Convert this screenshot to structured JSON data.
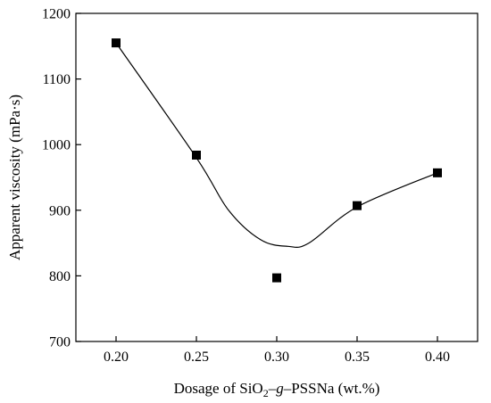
{
  "chart_data": {
    "type": "scatter",
    "title": "",
    "xlabel_parts": [
      "Dosage of SiO",
      "2",
      "–",
      "g",
      "–PSSNa (wt.%)"
    ],
    "ylabel": "Apparent viscosity (mPa·s)",
    "xlim": [
      0.175,
      0.425
    ],
    "ylim": [
      700,
      1200
    ],
    "x_ticks": [
      "0.20",
      "0.25",
      "0.30",
      "0.35",
      "0.40"
    ],
    "y_ticks": [
      "700",
      "800",
      "900",
      "1000",
      "1100",
      "1200"
    ],
    "grid": false,
    "legend": "none",
    "marker": "square",
    "color": "#000000",
    "series": [
      {
        "x": [
          0.2,
          0.25,
          0.3,
          0.35,
          0.4
        ],
        "y": [
          1155,
          984,
          797,
          907,
          957
        ]
      }
    ],
    "fit_curve": {
      "style": "smooth line",
      "x": [
        0.2,
        0.25,
        0.27,
        0.29,
        0.307,
        0.32,
        0.35,
        0.4
      ],
      "y": [
        1155,
        980,
        900,
        855,
        845,
        850,
        905,
        957
      ]
    }
  }
}
